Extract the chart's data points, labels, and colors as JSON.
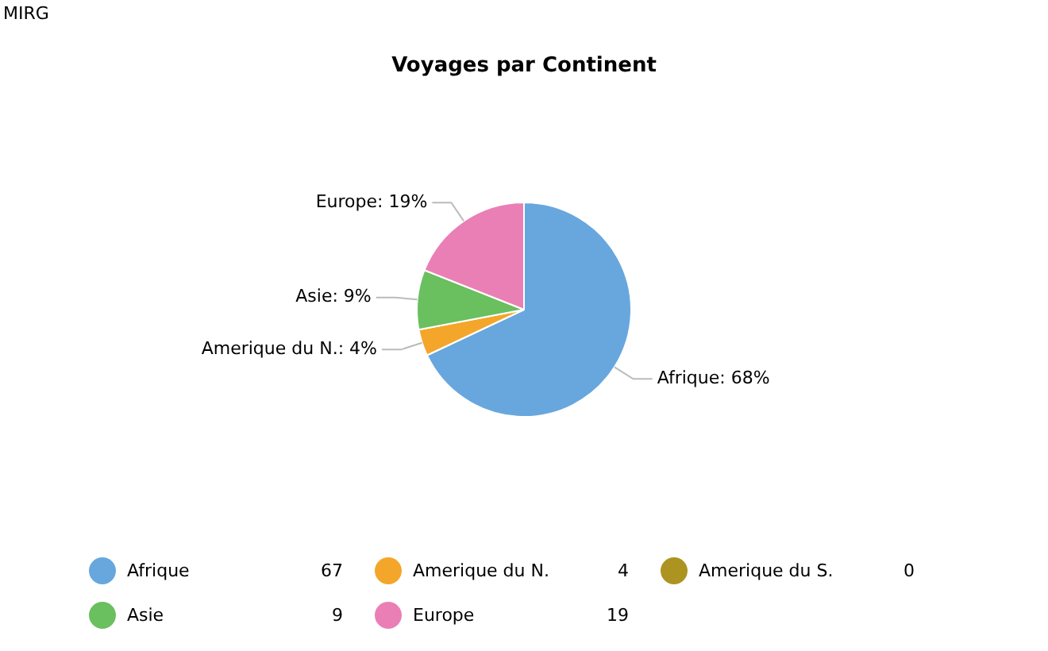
{
  "chart_data": {
    "type": "pie",
    "title": "Voyages par Continent",
    "annotations": [
      "MIRG",
      {
        "text": "67",
        "x": "Afrique"
      },
      {
        "text": "4",
        "x": "Amerique du N."
      },
      {
        "text": "0",
        "x": "Amerique du S."
      },
      {
        "text": "9",
        "x": "Asie"
      },
      {
        "text": "19",
        "x": "Europe"
      }
    ],
    "categories": [
      "Afrique",
      "Amerique du N.",
      "Amerique du S.",
      "Asie",
      "Europe"
    ],
    "values": [
      68,
      4,
      0,
      9,
      19
    ],
    "colors": [
      "#67a7de",
      "#f4a62a",
      "#ad9420",
      "#6abf5f",
      "#ea7fb5"
    ],
    "value_labels": [
      "Afrique: 68%",
      "Amerique du N.: 4%",
      null,
      "Asie: 9%",
      "Europe: 19%"
    ],
    "legend": "bottom"
  }
}
